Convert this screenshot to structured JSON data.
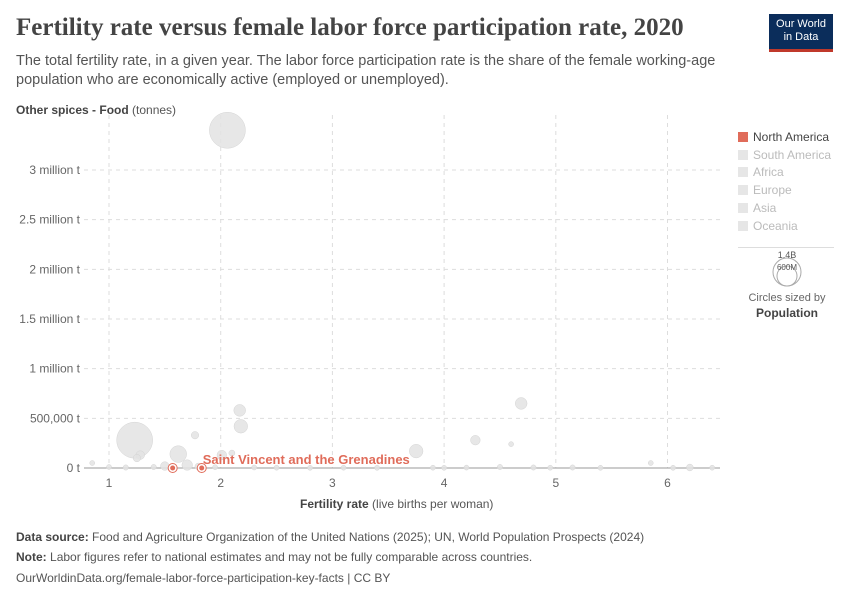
{
  "title": "Fertility rate versus female labor force participation rate, 2020",
  "subtitle": "The total fertility rate, in a given year. The labor force participation rate is the share of the female working-age population who are economically active (employed or unemployed).",
  "logo": "Our World in Data",
  "chart_data": {
    "type": "scatter",
    "ylabel_bold": "Other spices - Food",
    "ylabel_unit": "(tonnes)",
    "xlabel_bold": "Fertility rate",
    "xlabel_unit": "(live births per woman)",
    "xlim": [
      0.78,
      6.45
    ],
    "ylim": [
      0,
      3500000
    ],
    "xticks": [
      1,
      2,
      3,
      4,
      5,
      6
    ],
    "yticks": [
      {
        "v": 0,
        "l": "0 t"
      },
      {
        "v": 500000,
        "l": "500,000 t"
      },
      {
        "v": 1000000,
        "l": "1 million t"
      },
      {
        "v": 1500000,
        "l": "1.5 million t"
      },
      {
        "v": 2000000,
        "l": "2 million t"
      },
      {
        "v": 2500000,
        "l": "2.5 million t"
      },
      {
        "v": 3000000,
        "l": "3 million t"
      }
    ],
    "grid": true,
    "highlight_color": "#e06c5a",
    "other_color": "#e3e3e3",
    "points": [
      {
        "x": 2.06,
        "y": 3400000,
        "pop": 1400
      },
      {
        "x": 1.23,
        "y": 280000,
        "pop": 1400
      },
      {
        "x": 2.17,
        "y": 580000,
        "pop": 150
      },
      {
        "x": 2.18,
        "y": 420000,
        "pop": 200
      },
      {
        "x": 4.69,
        "y": 650000,
        "pop": 150
      },
      {
        "x": 1.77,
        "y": 330000,
        "pop": 60
      },
      {
        "x": 1.62,
        "y": 140000,
        "pop": 300
      },
      {
        "x": 3.75,
        "y": 170000,
        "pop": 200
      },
      {
        "x": 4.28,
        "y": 280000,
        "pop": 100
      },
      {
        "x": 4.6,
        "y": 240000,
        "pop": 20
      },
      {
        "x": 2.01,
        "y": 130000,
        "pop": 100
      },
      {
        "x": 1.28,
        "y": 130000,
        "pop": 80
      },
      {
        "x": 1.25,
        "y": 100000,
        "pop": 60
      },
      {
        "x": 2.1,
        "y": 150000,
        "pop": 40
      },
      {
        "x": 1.7,
        "y": 30000,
        "pop": 120
      },
      {
        "x": 1.5,
        "y": 20000,
        "pop": 80
      },
      {
        "x": 0.85,
        "y": 50000,
        "pop": 20
      },
      {
        "x": 1.0,
        "y": 10000,
        "pop": 10
      },
      {
        "x": 1.15,
        "y": 5000,
        "pop": 30
      },
      {
        "x": 1.4,
        "y": 10000,
        "pop": 30
      },
      {
        "x": 1.8,
        "y": 15000,
        "pop": 50
      },
      {
        "x": 1.95,
        "y": 8000,
        "pop": 20
      },
      {
        "x": 2.3,
        "y": 5000,
        "pop": 20
      },
      {
        "x": 2.5,
        "y": 3000,
        "pop": 10
      },
      {
        "x": 2.8,
        "y": 2000,
        "pop": 10
      },
      {
        "x": 3.1,
        "y": 3000,
        "pop": 10
      },
      {
        "x": 3.4,
        "y": 2000,
        "pop": 10
      },
      {
        "x": 3.9,
        "y": 3000,
        "pop": 10
      },
      {
        "x": 4.2,
        "y": 4000,
        "pop": 20
      },
      {
        "x": 4.5,
        "y": 10000,
        "pop": 30
      },
      {
        "x": 4.8,
        "y": 5000,
        "pop": 30
      },
      {
        "x": 5.15,
        "y": 5000,
        "pop": 30
      },
      {
        "x": 5.4,
        "y": 2000,
        "pop": 10
      },
      {
        "x": 5.85,
        "y": 50000,
        "pop": 8
      },
      {
        "x": 6.2,
        "y": 5000,
        "pop": 50
      },
      {
        "x": 6.4,
        "y": 3000,
        "pop": 10
      },
      {
        "x": 4.0,
        "y": 2000,
        "pop": 10
      },
      {
        "x": 4.95,
        "y": 3000,
        "pop": 20
      },
      {
        "x": 6.05,
        "y": 2000,
        "pop": 10
      },
      {
        "x": 1.57,
        "y": 0,
        "pop": 30,
        "region": "North America"
      },
      {
        "x": 1.83,
        "y": 0,
        "pop": 1,
        "region": "North America",
        "label": "Saint Vincent and the Grenadines"
      }
    ]
  },
  "legend": {
    "regions": [
      "North America",
      "South America",
      "Africa",
      "Europe",
      "Asia",
      "Oceania"
    ],
    "size_max": "1.4B",
    "size_min": "600M",
    "size_caption": "Circles sized by",
    "size_var": "Population"
  },
  "footer": {
    "source_label": "Data source:",
    "source": "Food and Agriculture Organization of the United Nations (2025); UN, World Population Prospects (2024)",
    "note_label": "Note:",
    "note": "Labor figures refer to national estimates and may not be fully comparable across countries.",
    "url": "OurWorldinData.org/female-labor-force-participation-key-facts | CC BY"
  }
}
